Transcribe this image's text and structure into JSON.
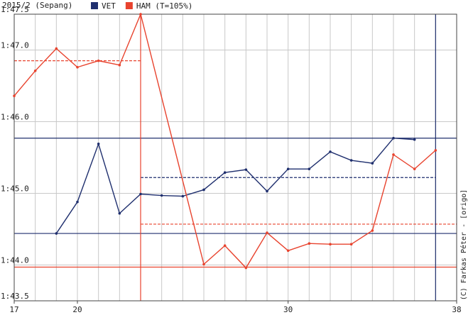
{
  "chart_data": {
    "type": "line",
    "title": "2015/2 (Sepang)",
    "credit": "(C) Farkas Péter - [origo]",
    "xlim": [
      17,
      38
    ],
    "xticks": [
      17,
      20,
      30,
      38
    ],
    "xgrid": [
      18,
      19,
      20,
      21,
      22,
      23,
      24,
      25,
      26,
      27,
      28,
      29,
      30,
      31,
      32,
      33,
      34,
      35,
      36,
      37
    ],
    "ylim": [
      103.5,
      107.5
    ],
    "yticks": [
      {
        "value": 103.5,
        "label": "1:43.5"
      },
      {
        "value": 104,
        "label": "1:44.0"
      },
      {
        "value": 105,
        "label": "1:45.0"
      },
      {
        "value": 106,
        "label": "1:46.0"
      },
      {
        "value": 107,
        "label": "1:47.0"
      },
      {
        "value": 107.5,
        "label": "1:47.5"
      }
    ],
    "grid": true,
    "series": [
      {
        "name": "VET",
        "color": "#1f2f6e",
        "x": [
          19,
          20,
          21,
          22,
          23,
          24,
          25,
          26,
          27,
          28,
          29,
          30,
          31,
          32,
          33,
          34,
          35,
          36
        ],
        "values": [
          104.44,
          104.88,
          105.69,
          104.72,
          104.99,
          104.97,
          104.96,
          105.05,
          105.29,
          105.33,
          105.03,
          105.34,
          105.34,
          105.58,
          105.46,
          105.42,
          105.77,
          105.75
        ]
      },
      {
        "name": "HAM (T=105%)",
        "color": "#e8432e",
        "x": [
          17,
          18,
          19,
          20,
          21,
          22,
          23,
          26,
          27,
          28,
          29,
          30,
          31,
          32,
          33,
          34,
          35,
          36,
          37
        ],
        "values": [
          106.36,
          106.71,
          107.02,
          106.76,
          106.85,
          106.79,
          107.5,
          104.01,
          104.27,
          103.96,
          104.45,
          104.2,
          104.3,
          104.29,
          104.29,
          104.48,
          105.54,
          105.34,
          105.6
        ]
      }
    ],
    "hlines": [
      {
        "y": 105.77,
        "x": [
          17,
          38
        ],
        "color": "#1f2f6e",
        "style": "solid"
      },
      {
        "y": 104.44,
        "x": [
          17,
          38
        ],
        "color": "#1f2f6e",
        "style": "solid"
      },
      {
        "y": 105.22,
        "x": [
          23,
          37
        ],
        "color": "#1f2f6e",
        "style": "dashed"
      },
      {
        "y": 106.85,
        "x": [
          17,
          23
        ],
        "color": "#e8432e",
        "style": "dashed"
      },
      {
        "y": 104.57,
        "x": [
          23,
          38
        ],
        "color": "#e8432e",
        "style": "dashed"
      },
      {
        "y": 103.97,
        "x": [
          17,
          38
        ],
        "color": "#e8432e",
        "style": "solid"
      }
    ],
    "vlines": [
      {
        "x": 23,
        "color": "#e8432e"
      },
      {
        "x": 37,
        "color": "#1f2f6e"
      }
    ]
  }
}
